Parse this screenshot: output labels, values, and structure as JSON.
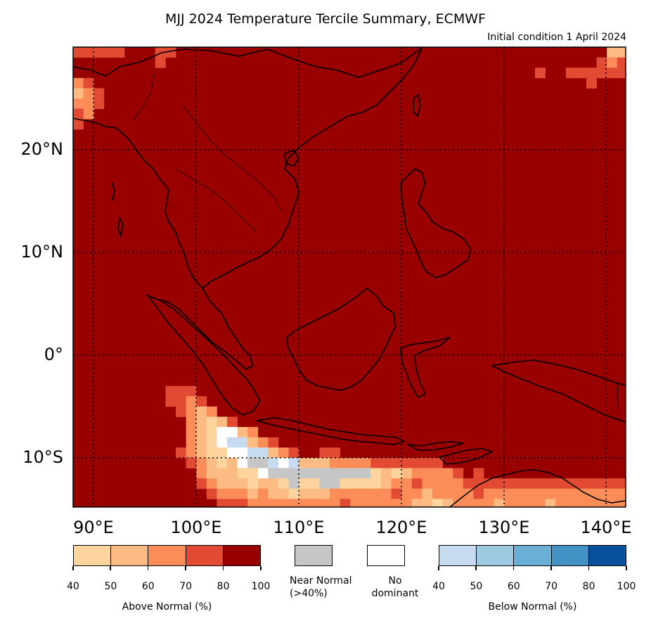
{
  "title": "MJJ 2024 Temperature Tercile Summary, ECMWF",
  "subtitle": "Initial condition 1 April 2024",
  "map": {
    "lat_labels": [
      "20°N",
      "10°N",
      "0°",
      "10°S"
    ],
    "lon_labels": [
      "90°E",
      "100°E",
      "110°E",
      "120°E",
      "130°E",
      "140°E"
    ],
    "lon_range": [
      88,
      142
    ],
    "lat_range": [
      -15,
      30
    ],
    "background_category": "above-80-100",
    "grid": "dotted",
    "coastlines": true
  },
  "legend": {
    "above_normal": {
      "label": "Above Normal (%)",
      "ticks": [
        "40",
        "50",
        "60",
        "70",
        "80",
        "100"
      ],
      "colors": [
        "#fdd49e",
        "#fdbb84",
        "#fc8d59",
        "#e34a33",
        "#990000"
      ]
    },
    "near_normal": {
      "label_line1": "Near Normal",
      "label_line2": "(>40%)",
      "color": "#c6c6c6"
    },
    "no_dominant": {
      "label_line1": "No",
      "label_line2": "dominant",
      "color": "#ffffff"
    },
    "below_normal": {
      "label": "Below Normal (%)",
      "ticks": [
        "40",
        "50",
        "60",
        "70",
        "80",
        "100"
      ],
      "colors": [
        "#c6dbef",
        "#9ecae1",
        "#6baed6",
        "#4292c6",
        "#08519c"
      ]
    }
  },
  "colors": {
    "above_80_100": "#990000",
    "above_70_80": "#e34a33",
    "above_60_70": "#fc8d59",
    "above_50_60": "#fdbb84",
    "above_40_50": "#fdd49e",
    "near_normal": "#c6c6c6",
    "no_dominant": "#ffffff",
    "below_40_50": "#c6dbef",
    "below_50_60": "#9ecae1"
  }
}
